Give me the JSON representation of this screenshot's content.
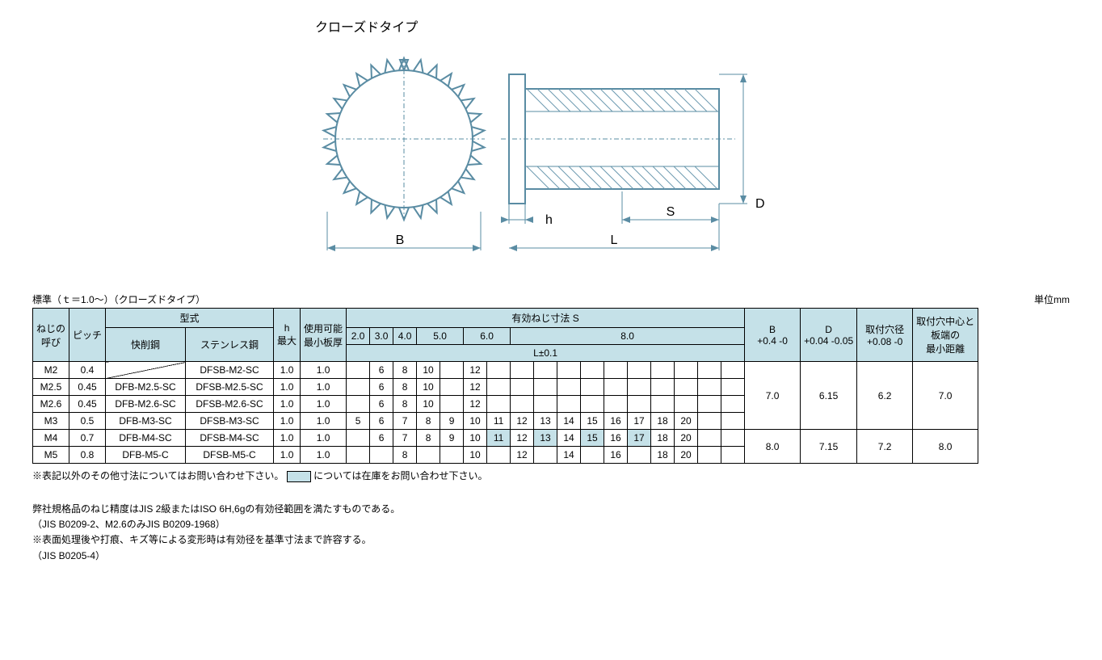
{
  "diagram": {
    "title": "クローズドタイプ",
    "labels": {
      "B": "B",
      "h": "h",
      "L": "L",
      "S": "S",
      "D": "D"
    },
    "stroke": "#5a8ca3",
    "hatch": "#6c9ab0"
  },
  "tableCaption": {
    "left": "標準（ｔ＝1.0～）（クローズドタイプ）",
    "right": "単位mm"
  },
  "columns": {
    "thread": "ねじの\n呼び",
    "pitch": "ピッチ",
    "model": "型式",
    "model_sub1": "快削鋼",
    "model_sub2": "ステンレス鋼",
    "hmax": "h\n最大",
    "minplate": "使用可能\n最小板厚",
    "s_header": "有効ねじ寸法 S",
    "s_values": [
      "2.0",
      "3.0",
      "4.0",
      "5.0",
      "6.0",
      "8.0"
    ],
    "l_header": "L±0.1",
    "B": "B\n+0.4 -0",
    "D": "D\n+0.04 -0.05",
    "hole": "取付穴径\n+0.08 -0",
    "mindist": "取付穴中心と\n板端の\n最小距離"
  },
  "groups": [
    {
      "B": "7.0",
      "D": "6.15",
      "hole": "6.2",
      "mindist": "7.0",
      "rows": [
        {
          "thread": "M2",
          "pitch": "0.4",
          "m1": "",
          "m1diag": true,
          "m2": "DFSB-M2-SC",
          "h": "1.0",
          "mp": "1.0",
          "cells": [
            "",
            "6",
            "8",
            "10",
            "",
            "12",
            "",
            "",
            "",
            "",
            "",
            "",
            "",
            "",
            "",
            "",
            ""
          ]
        },
        {
          "thread": "M2.5",
          "pitch": "0.45",
          "m1": "DFB-M2.5-SC",
          "m2": "DFSB-M2.5-SC",
          "h": "1.0",
          "mp": "1.0",
          "cells": [
            "",
            "6",
            "8",
            "10",
            "",
            "12",
            "",
            "",
            "",
            "",
            "",
            "",
            "",
            "",
            "",
            "",
            ""
          ]
        },
        {
          "thread": "M2.6",
          "pitch": "0.45",
          "m1": "DFB-M2.6-SC",
          "m2": "DFSB-M2.6-SC",
          "h": "1.0",
          "mp": "1.0",
          "cells": [
            "",
            "6",
            "8",
            "10",
            "",
            "12",
            "",
            "",
            "",
            "",
            "",
            "",
            "",
            "",
            "",
            "",
            ""
          ]
        },
        {
          "thread": "M3",
          "pitch": "0.5",
          "m1": "DFB-M3-SC",
          "m2": "DFSB-M3-SC",
          "h": "1.0",
          "mp": "1.0",
          "cells": [
            "5",
            "6",
            "7",
            "8",
            "9",
            "10",
            "11",
            "12",
            "13",
            "14",
            "15",
            "16",
            "17",
            "18",
            "20",
            "",
            ""
          ]
        }
      ]
    },
    {
      "B": "8.0",
      "D": "7.15",
      "hole": "7.2",
      "mindist": "8.0",
      "rows": [
        {
          "thread": "M4",
          "pitch": "0.7",
          "m1": "DFB-M4-SC",
          "m2": "DFSB-M4-SC",
          "h": "1.0",
          "mp": "1.0",
          "cells": [
            "",
            "6",
            "7",
            "8",
            "9",
            "10",
            "11",
            "12",
            "13",
            "14",
            "15",
            "16",
            "17",
            "18",
            "20",
            "",
            ""
          ],
          "hl": [
            6,
            8,
            10,
            12
          ]
        },
        {
          "thread": "M5",
          "pitch": "0.8",
          "m1": "DFB-M5-C",
          "m2": "DFSB-M5-C",
          "h": "1.0",
          "mp": "1.0",
          "cells": [
            "",
            "",
            "8",
            "",
            "",
            "10",
            "",
            "12",
            "",
            "14",
            "",
            "16",
            "",
            "18",
            "20",
            "",
            ""
          ]
        }
      ]
    }
  ],
  "footnote": {
    "text1": "※表記以外のその他寸法についてはお問い合わせ下さい。",
    "text2": "については在庫をお問い合わせ下さい。"
  },
  "notes": [
    "弊社規格品のねじ精度はJIS 2級またはISO 6H,6gの有効径範囲を満たすものである。",
    "（JIS B0209-2、M2.6のみJIS B0209-1968）",
    "※表面処理後や打痕、キズ等による変形時は有効径を基準寸法まで許容する。",
    "（JIS B0205-4）"
  ]
}
